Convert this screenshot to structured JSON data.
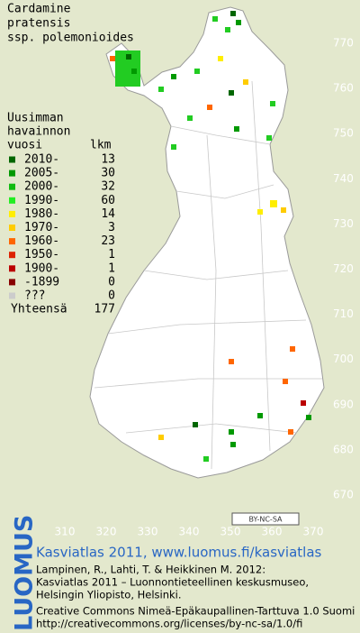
{
  "title": [
    "Cardamine",
    "pratensis",
    "ssp. polemonioides"
  ],
  "legend": {
    "title": [
      "Uusimman",
      "havainnon"
    ],
    "header": {
      "period": "vuosi",
      "count": "lkm"
    },
    "rows": [
      {
        "label": "2010-",
        "count": 13,
        "color": "#006600"
      },
      {
        "label": "2005-",
        "count": 30,
        "color": "#009900"
      },
      {
        "label": "2000-",
        "count": 32,
        "color": "#11bb11"
      },
      {
        "label": "1990-",
        "count": 60,
        "color": "#22ee22"
      },
      {
        "label": "1980-",
        "count": 14,
        "color": "#ffee00"
      },
      {
        "label": "1970-",
        "count": 3,
        "color": "#ffcc00"
      },
      {
        "label": "1960-",
        "count": 23,
        "color": "#ff6600"
      },
      {
        "label": "1950-",
        "count": 1,
        "color": "#dd2200"
      },
      {
        "label": "1900-",
        "count": 1,
        "color": "#bb0000"
      },
      {
        "label": "-1899",
        "count": 0,
        "color": "#880000"
      },
      {
        "label": "???",
        "count": 0,
        "color": "#cccccc"
      }
    ],
    "total": {
      "label": "Yhteensä",
      "count": 177
    }
  },
  "axes": {
    "x_ticks": [
      310,
      320,
      330,
      340,
      350,
      360,
      370
    ],
    "y_ticks": [
      770,
      760,
      750,
      740,
      730,
      720,
      710,
      700,
      690,
      680,
      670
    ]
  },
  "license_badge": "BY-NC-SA",
  "footer": {
    "logo": "LUOMUS",
    "link": "Kasviatlas 2011, www.luomus.fi/kasviatlas",
    "citation": [
      "Lampinen, R., Lahti, T. & Heikkinen M. 2012:",
      "Kasviatlas 2011 – Luonnontieteellinen keskusmuseo,",
      "Helsingin Yliopisto, Helsinki."
    ],
    "license": [
      "Creative Commons Nimeä-Epäkaupallinen-Tarttuva 1.0 Suomi",
      "http://creativecommons.org/licenses/by-nc-sa/1.0/fi"
    ]
  }
}
